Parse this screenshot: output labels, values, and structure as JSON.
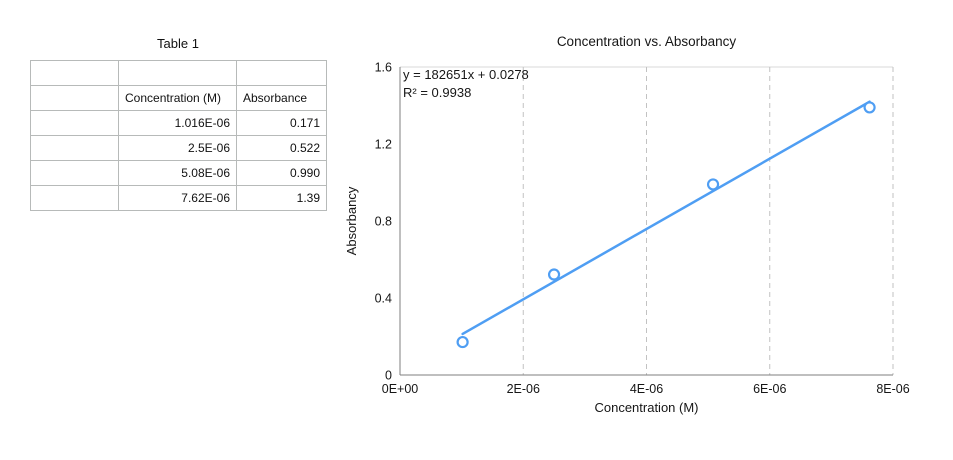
{
  "table": {
    "title": "Table 1",
    "columns": [
      "Concentration (M)",
      "Absorbance"
    ],
    "rows": [
      [
        "1.016E-06",
        "0.171"
      ],
      [
        "2.5E-06",
        "0.522"
      ],
      [
        "5.08E-06",
        "0.990"
      ],
      [
        "7.62E-06",
        "1.39"
      ]
    ]
  },
  "chart_data": {
    "type": "scatter",
    "title": "Concentration vs. Absorbancy",
    "xlabel": "Concentration (M)",
    "ylabel": "Absorbancy",
    "x": [
      1.016e-06,
      2.5e-06,
      5.08e-06,
      7.62e-06
    ],
    "y": [
      0.171,
      0.522,
      0.99,
      1.39
    ],
    "trendline": {
      "slope": 182651,
      "intercept": 0.0278,
      "equation_label": "y = 182651x + 0.0278",
      "r2_label": "R² = 0.9938"
    },
    "xlim": [
      0,
      8e-06
    ],
    "ylim": [
      0,
      1.6
    ],
    "x_ticks": [
      0,
      2e-06,
      4e-06,
      6e-06,
      8e-06
    ],
    "x_tick_labels": [
      "0E+00",
      "2E-06",
      "4E-06",
      "6E-06",
      "8E-06"
    ],
    "y_ticks": [
      0,
      0.4,
      0.8,
      1.2,
      1.6
    ],
    "y_tick_labels": [
      "0",
      "0.4",
      "0.8",
      "1.2",
      "1.6"
    ],
    "grid": "vertical-dashed",
    "legend": "none",
    "marker_color": "#4f9ef3",
    "line_color": "#4f9ef3"
  }
}
